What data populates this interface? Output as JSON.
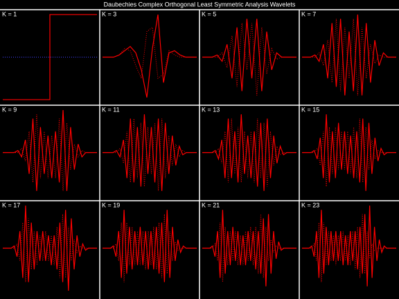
{
  "title": "Daubechies Complex Orthogonal Least Symmetric Analysis Wavelets",
  "chart_data": [
    {
      "type": "line",
      "title": "K = 1",
      "x": [
        0,
        0.5,
        0.5,
        1
      ],
      "xlim": [
        0,
        1
      ],
      "ylim": [
        -1.05,
        1.05
      ],
      "series": [
        {
          "color": "#ff0000",
          "line_style": "solid",
          "values": [
            -1,
            -1,
            1,
            1
          ]
        },
        {
          "color": "#4040ff",
          "line_style": "dotted",
          "values": [
            0,
            0,
            0,
            0
          ]
        }
      ]
    },
    {
      "type": "line",
      "title": "K = 3",
      "ylim": [
        -1.05,
        1.05
      ],
      "series": [
        {
          "color": "#ff0000",
          "line_style": "solid",
          "values": [
            0,
            0,
            0,
            0.05,
            0.15,
            0.25,
            0.1,
            -0.3,
            -0.95,
            0.2,
            1,
            -0.6,
            0.1,
            0.15,
            0.05,
            0,
            0,
            0
          ]
        },
        {
          "color": "#ff0000",
          "line_style": "dotted",
          "values": [
            0,
            0,
            0,
            0.05,
            0.2,
            0.15,
            -0.2,
            -0.5,
            0.6,
            0.7,
            -0.5,
            -0.4,
            0.15,
            0.05,
            0,
            0,
            0,
            0
          ]
        }
      ]
    },
    {
      "type": "line",
      "title": "K = 5",
      "ylim": [
        -1.05,
        1.05
      ],
      "series": [
        {
          "color": "#ff0000",
          "line_style": "solid",
          "values": [
            0,
            0,
            0,
            0.05,
            -0.1,
            0.3,
            -0.5,
            0.7,
            -0.8,
            0.9,
            -0.5,
            0.9,
            -0.8,
            0.6,
            -0.3,
            0.1,
            0,
            0,
            0,
            0
          ]
        },
        {
          "color": "#ff0000",
          "line_style": "dotted",
          "values": [
            0,
            0,
            0,
            0,
            0.1,
            -0.25,
            0.5,
            -0.7,
            0.8,
            -0.3,
            0.8,
            -0.9,
            0.7,
            -0.4,
            0.2,
            -0.05,
            0,
            0,
            0,
            0
          ]
        }
      ]
    },
    {
      "type": "line",
      "title": "K = 7",
      "ylim": [
        -1.05,
        1.05
      ],
      "series": [
        {
          "color": "#ff0000",
          "line_style": "solid",
          "values": [
            0,
            0,
            0,
            0.05,
            -0.1,
            0.3,
            -0.5,
            0.8,
            -0.7,
            0.9,
            -0.9,
            0.6,
            -0.8,
            1,
            -0.9,
            0.8,
            -0.6,
            0.4,
            -0.2,
            0.1,
            0,
            0,
            0
          ]
        },
        {
          "color": "#ff0000",
          "line_style": "dotted",
          "values": [
            0,
            0,
            0,
            0,
            0.1,
            -0.2,
            0.4,
            -0.6,
            0.9,
            -0.8,
            0.7,
            -0.5,
            0.9,
            -0.9,
            0.7,
            -0.5,
            0.3,
            -0.15,
            0.05,
            0,
            0,
            0,
            0
          ]
        }
      ]
    },
    {
      "type": "line",
      "title": "K = 9",
      "ylim": [
        -1.05,
        1.05
      ],
      "series": [
        {
          "color": "#ff0000",
          "line_style": "solid",
          "values": [
            0,
            0,
            0,
            0,
            0.05,
            -0.1,
            0.3,
            -0.5,
            0.8,
            -0.9,
            0.6,
            -0.5,
            0.4,
            -0.6,
            0.5,
            -0.7,
            1,
            -0.9,
            0.6,
            -0.4,
            0.2,
            -0.1,
            0,
            0,
            0,
            0
          ]
        },
        {
          "color": "#ff0000",
          "line_style": "dotted",
          "values": [
            0,
            0,
            0,
            0,
            0,
            0.1,
            -0.2,
            0.5,
            -0.7,
            0.9,
            -0.6,
            0.5,
            -0.6,
            0.4,
            -0.6,
            0.8,
            -0.9,
            0.7,
            -0.4,
            0.2,
            -0.1,
            0.05,
            0,
            0,
            0,
            0
          ]
        }
      ]
    },
    {
      "type": "line",
      "title": "K = 11",
      "ylim": [
        -1.05,
        1.05
      ],
      "series": [
        {
          "color": "#ff0000",
          "line_style": "solid",
          "values": [
            0,
            0,
            0,
            0,
            0.05,
            -0.1,
            0.3,
            -0.6,
            0.8,
            -0.7,
            0.6,
            -0.8,
            0.9,
            -0.5,
            0.6,
            -0.7,
            0.8,
            -0.9,
            0.7,
            -0.5,
            0.4,
            -0.3,
            0.15,
            -0.05,
            0,
            0,
            0,
            0
          ]
        },
        {
          "color": "#ff0000",
          "line_style": "dotted",
          "values": [
            0,
            0,
            0,
            0,
            0,
            0.1,
            -0.25,
            0.5,
            -0.7,
            0.8,
            -0.6,
            0.7,
            -0.8,
            0.6,
            -0.5,
            0.7,
            -0.9,
            0.8,
            -0.6,
            0.4,
            -0.3,
            0.2,
            -0.1,
            0.05,
            0,
            0,
            0,
            0
          ]
        }
      ]
    },
    {
      "type": "line",
      "title": "K = 13",
      "ylim": [
        -1.05,
        1.05
      ],
      "series": [
        {
          "color": "#ff0000",
          "line_style": "solid",
          "values": [
            0,
            0,
            0,
            0,
            0.05,
            -0.15,
            0.3,
            -0.6,
            0.8,
            -0.6,
            0.5,
            -0.7,
            0.9,
            -0.5,
            0.4,
            -0.6,
            0.5,
            -0.8,
            0.7,
            -0.9,
            0.8,
            -0.6,
            0.4,
            -0.25,
            0.15,
            -0.05,
            0,
            0,
            0,
            0
          ]
        },
        {
          "color": "#ff0000",
          "line_style": "dotted",
          "values": [
            0,
            0,
            0,
            0,
            0,
            0.1,
            -0.25,
            0.5,
            -0.7,
            0.8,
            -0.5,
            0.6,
            -0.7,
            0.5,
            -0.6,
            0.5,
            -0.7,
            0.8,
            -0.6,
            0.7,
            -0.8,
            0.5,
            -0.3,
            0.15,
            -0.05,
            0,
            0,
            0,
            0,
            0
          ]
        }
      ]
    },
    {
      "type": "line",
      "title": "K = 15",
      "ylim": [
        -1.05,
        1.05
      ],
      "series": [
        {
          "color": "#ff0000",
          "line_style": "solid",
          "values": [
            0,
            0,
            0,
            0,
            0.05,
            -0.15,
            0.35,
            -0.6,
            0.9,
            -0.7,
            0.5,
            -0.6,
            0.7,
            -0.4,
            0.5,
            -0.5,
            0.4,
            -0.6,
            0.5,
            -0.7,
            0.8,
            -0.9,
            0.7,
            -0.5,
            0.35,
            -0.2,
            0.1,
            -0.05,
            0,
            0,
            0,
            0
          ]
        },
        {
          "color": "#ff0000",
          "line_style": "dotted",
          "values": [
            0,
            0,
            0,
            0,
            0,
            0.1,
            -0.3,
            0.5,
            -0.8,
            0.6,
            -0.5,
            0.6,
            -0.4,
            0.5,
            -0.4,
            0.5,
            -0.5,
            0.6,
            -0.6,
            0.8,
            -0.7,
            0.6,
            -0.4,
            0.3,
            -0.15,
            0.05,
            0,
            0,
            0,
            0,
            0,
            0
          ]
        }
      ]
    },
    {
      "type": "line",
      "title": "K = 17",
      "ylim": [
        -1.05,
        1.05
      ],
      "series": [
        {
          "color": "#ff0000",
          "line_style": "solid",
          "values": [
            0,
            0,
            0,
            0,
            0.05,
            -0.2,
            0.4,
            -0.7,
            1,
            -0.8,
            0.6,
            -0.5,
            0.4,
            -0.3,
            0.4,
            -0.3,
            0.3,
            -0.4,
            0.3,
            -0.5,
            0.6,
            -0.8,
            0.9,
            -1,
            0.7,
            -0.5,
            0.3,
            -0.2,
            0.1,
            -0.05,
            0,
            0,
            0,
            0
          ]
        },
        {
          "color": "#ff0000",
          "line_style": "dotted",
          "values": [
            0,
            0,
            0,
            0,
            0,
            0.1,
            -0.3,
            0.6,
            -0.8,
            0.7,
            -0.5,
            0.4,
            -0.4,
            0.3,
            -0.3,
            0.4,
            -0.3,
            0.3,
            -0.4,
            0.5,
            -0.7,
            0.8,
            -0.7,
            0.5,
            -0.3,
            0.2,
            -0.1,
            0.05,
            0,
            0,
            0,
            0,
            0,
            0
          ]
        }
      ]
    },
    {
      "type": "line",
      "title": "K = 19",
      "ylim": [
        -1.05,
        1.05
      ],
      "series": [
        {
          "color": "#ff0000",
          "line_style": "solid",
          "values": [
            0,
            0,
            0,
            0,
            0.05,
            -0.2,
            0.4,
            -0.7,
            0.9,
            -0.6,
            0.5,
            -0.5,
            0.4,
            -0.4,
            0.5,
            -0.4,
            0.4,
            -0.5,
            0.4,
            -0.5,
            0.5,
            -0.6,
            0.6,
            -0.8,
            0.9,
            -0.7,
            0.5,
            -0.3,
            0.2,
            -0.1,
            0.05,
            0,
            0,
            0,
            0,
            0
          ]
        },
        {
          "color": "#ff0000",
          "line_style": "dotted",
          "values": [
            0,
            0,
            0,
            0,
            0,
            0.1,
            -0.3,
            0.6,
            -0.8,
            0.6,
            -0.4,
            0.5,
            -0.4,
            0.4,
            -0.4,
            0.4,
            -0.5,
            0.4,
            -0.4,
            0.5,
            -0.5,
            0.6,
            -0.7,
            0.8,
            -0.6,
            0.4,
            -0.3,
            0.15,
            -0.05,
            0,
            0,
            0,
            0,
            0,
            0,
            0
          ]
        }
      ]
    },
    {
      "type": "line",
      "title": "K = 21",
      "ylim": [
        -1.05,
        1.05
      ],
      "series": [
        {
          "color": "#ff0000",
          "line_style": "solid",
          "values": [
            0,
            0,
            0,
            0,
            0.05,
            -0.2,
            0.4,
            -0.7,
            0.9,
            -0.6,
            0.4,
            -0.4,
            0.5,
            -0.3,
            0.4,
            -0.4,
            0.3,
            -0.4,
            0.4,
            -0.3,
            0.4,
            -0.5,
            0.4,
            -0.6,
            0.7,
            -0.9,
            0.8,
            -0.6,
            0.4,
            -0.25,
            0.15,
            -0.05,
            0,
            0,
            0,
            0,
            0,
            0
          ]
        },
        {
          "color": "#ff0000",
          "line_style": "dotted",
          "values": [
            0,
            0,
            0,
            0,
            0,
            0.1,
            -0.3,
            0.6,
            -0.8,
            0.5,
            -0.4,
            0.4,
            -0.3,
            0.4,
            -0.4,
            0.3,
            -0.4,
            0.4,
            -0.3,
            0.5,
            -0.4,
            0.5,
            -0.6,
            0.8,
            -0.7,
            0.5,
            -0.3,
            0.2,
            -0.1,
            0.05,
            0,
            0,
            0,
            0,
            0,
            0,
            0,
            0
          ]
        }
      ]
    },
    {
      "type": "line",
      "title": "K = 23",
      "ylim": [
        -1.05,
        1.05
      ],
      "series": [
        {
          "color": "#ff0000",
          "line_style": "solid",
          "values": [
            0,
            0,
            0,
            0,
            0.05,
            -0.2,
            0.4,
            -0.7,
            0.9,
            -0.6,
            0.5,
            -0.4,
            0.4,
            -0.3,
            0.4,
            -0.3,
            0.4,
            -0.4,
            0.3,
            -0.4,
            0.4,
            -0.3,
            0.4,
            -0.5,
            0.5,
            -0.6,
            0.8,
            -0.9,
            1,
            -0.7,
            0.5,
            -0.3,
            0.2,
            -0.1,
            0.05,
            0,
            0,
            0,
            0,
            0
          ]
        },
        {
          "color": "#ff0000",
          "line_style": "dotted",
          "values": [
            0,
            0,
            0,
            0,
            0,
            0.1,
            -0.3,
            0.6,
            -0.8,
            0.6,
            -0.4,
            0.4,
            -0.3,
            0.3,
            -0.4,
            0.3,
            -0.3,
            0.4,
            -0.3,
            0.3,
            -0.4,
            0.4,
            -0.5,
            0.5,
            -0.7,
            0.8,
            -0.6,
            0.4,
            -0.25,
            0.1,
            -0.05,
            0,
            0,
            0,
            0,
            0,
            0,
            0,
            0,
            0
          ]
        }
      ]
    }
  ]
}
